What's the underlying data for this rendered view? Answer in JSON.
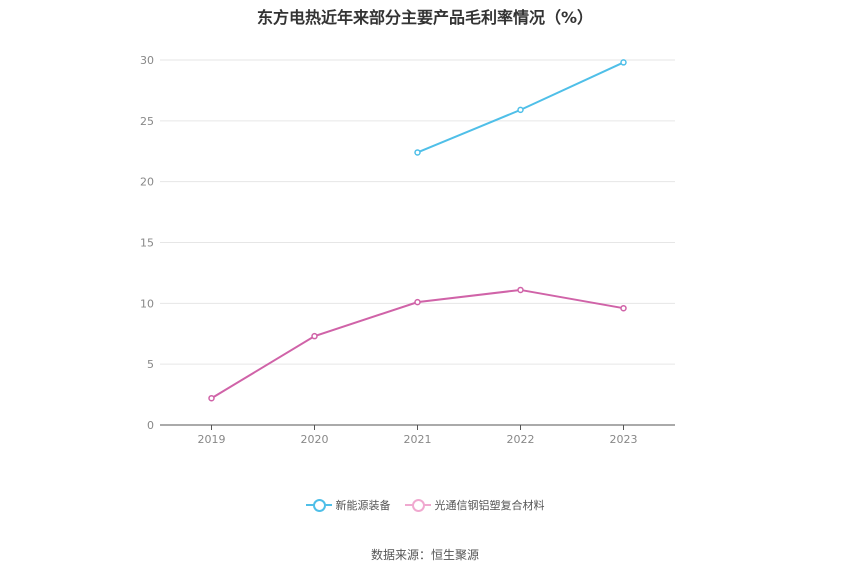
{
  "chart_data": {
    "type": "line",
    "title": "东方电热近年来部分主要产品毛利率情况（%）",
    "categories": [
      "2019",
      "2020",
      "2021",
      "2022",
      "2023"
    ],
    "ylim": [
      0,
      30
    ],
    "yticks": [
      0,
      5,
      10,
      15,
      20,
      25,
      30
    ],
    "grid": true,
    "legend_position": "bottom",
    "series": [
      {
        "name": "新能源装备",
        "color": "#4fbfe8",
        "values": [
          null,
          null,
          22.4,
          25.9,
          29.8
        ]
      },
      {
        "name": "光通信钢铝塑复合材料",
        "color": "#d063a8",
        "values": [
          2.2,
          7.3,
          10.1,
          11.1,
          9.6
        ]
      }
    ]
  },
  "footer": {
    "source": "数据来源：恒生聚源"
  }
}
